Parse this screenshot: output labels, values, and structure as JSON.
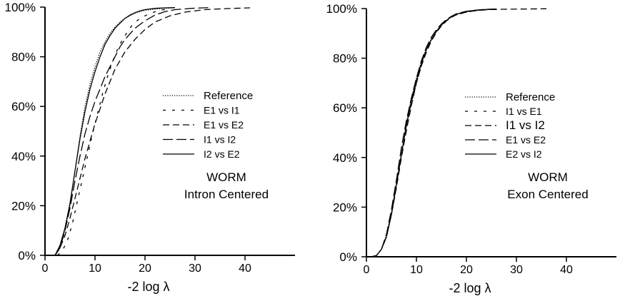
{
  "chart_data": [
    {
      "type": "line",
      "xlabel": "-2 log λ",
      "ylabel": "",
      "xlim": [
        0,
        50
      ],
      "ylim": [
        0,
        100
      ],
      "x_ticks": [
        "0",
        "10",
        "20",
        "30",
        "40"
      ],
      "y_ticks": [
        "0%",
        "20%",
        "40%",
        "60%",
        "80%",
        "100%"
      ],
      "annotation": [
        "WORM",
        "Intron Centered"
      ],
      "legend_position": "center-right",
      "series": [
        {
          "name": "Reference",
          "dash": "dotted",
          "x": [
            2,
            3,
            4,
            5,
            6,
            7,
            8,
            9,
            10,
            11,
            12,
            13,
            14,
            15,
            16,
            17,
            18,
            19,
            20,
            22,
            24,
            26
          ],
          "y": [
            0,
            3,
            10,
            20,
            34,
            48,
            60,
            69,
            76,
            82,
            86,
            89.5,
            92,
            94,
            95.5,
            96.5,
            97.5,
            98.2,
            98.7,
            99.2,
            99.5,
            99.7
          ]
        },
        {
          "name": "E1 vs I1",
          "dash": "sparse",
          "x": [
            2.5,
            3.5,
            4.5,
            5.5,
            6.5,
            7.5,
            8.5,
            9.5,
            10.5,
            11.5,
            12.5,
            13.5,
            14.5,
            15.5,
            16.5,
            17.5,
            19,
            21,
            23,
            25
          ],
          "y": [
            0,
            2,
            6,
            13,
            22,
            31,
            40,
            49,
            57,
            65,
            72,
            78,
            83,
            87,
            90,
            93,
            95.5,
            97.5,
            98.7,
            99.4
          ]
        },
        {
          "name": "E1 vs E2",
          "dash": "medium",
          "x": [
            2,
            3,
            4,
            5,
            6,
            7,
            8,
            9,
            10,
            11,
            12,
            13,
            14,
            16,
            18,
            20,
            22,
            25,
            28,
            32,
            36,
            41
          ],
          "y": [
            0,
            3,
            8,
            15,
            23,
            31,
            39,
            46,
            53,
            59,
            65,
            70,
            75,
            82,
            87,
            91,
            94,
            96.5,
            98,
            99,
            99.4,
            99.7
          ]
        },
        {
          "name": "I1 vs I2",
          "dash": "long",
          "x": [
            2,
            3,
            4,
            5,
            6,
            7,
            8,
            9,
            10,
            11,
            12,
            13,
            14,
            15,
            16,
            18,
            20,
            22,
            24,
            26,
            30,
            33
          ],
          "y": [
            0,
            3,
            10,
            19,
            30,
            40,
            49,
            56,
            62,
            67,
            72,
            76,
            80,
            84,
            87,
            91.5,
            94.5,
            96.8,
            98.2,
            99,
            99.6,
            99.8
          ]
        },
        {
          "name": "I2 vs E2",
          "dash": "solid",
          "x": [
            2,
            3,
            4,
            5,
            6,
            7,
            8,
            9,
            10,
            11,
            12,
            13,
            14,
            15,
            16,
            17,
            18,
            19,
            20,
            22,
            24,
            26
          ],
          "y": [
            0,
            4,
            11,
            21,
            34,
            47,
            58,
            67,
            74,
            80,
            85,
            88.5,
            91.5,
            93.5,
            95.5,
            96.8,
            97.8,
            98.5,
            99,
            99.5,
            99.7,
            99.8
          ]
        }
      ]
    },
    {
      "type": "line",
      "xlabel": "-2 log λ",
      "ylabel": "",
      "xlim": [
        0,
        50
      ],
      "ylim": [
        0,
        100
      ],
      "x_ticks": [
        "0",
        "10",
        "20",
        "30",
        "40"
      ],
      "y_ticks": [
        "0%",
        "20%",
        "40%",
        "60%",
        "80%",
        "100%"
      ],
      "annotation": [
        "WORM",
        "Exon Centered"
      ],
      "legend_position": "center-right",
      "series": [
        {
          "name": "Reference",
          "dash": "dotted",
          "x": [
            1,
            2,
            3,
            4,
            5,
            6,
            7,
            8,
            9,
            10,
            11,
            12,
            13,
            14,
            15,
            16,
            17,
            18,
            19,
            20,
            22,
            24,
            26
          ],
          "y": [
            0,
            0.5,
            3,
            9,
            18,
            30,
            42,
            54,
            64,
            72,
            79,
            84,
            88,
            91,
            93.5,
            95.3,
            96.7,
            97.7,
            98.4,
            98.9,
            99.4,
            99.7,
            99.8
          ]
        },
        {
          "name": "I1 vs E1",
          "dash": "sparse",
          "x": [
            1,
            2,
            3,
            4,
            5,
            6,
            7,
            8,
            9,
            10,
            11,
            12,
            13,
            14,
            15,
            16,
            17,
            18,
            20,
            22,
            24,
            26
          ],
          "y": [
            0,
            0.5,
            3,
            8,
            17,
            28,
            40,
            52,
            62,
            70,
            77,
            83,
            87,
            90.5,
            93,
            95,
            96.5,
            97.5,
            98.6,
            99.2,
            99.6,
            99.8
          ]
        },
        {
          "name": "I1 vs I2",
          "dash": "medium",
          "x": [
            1,
            2,
            3,
            4,
            5,
            6,
            7,
            8,
            9,
            10,
            11,
            12,
            13,
            14,
            15,
            16,
            17,
            18,
            20,
            22,
            24,
            27,
            31,
            36
          ],
          "y": [
            0,
            0.5,
            3,
            8,
            17,
            28,
            40,
            51,
            61,
            70,
            77,
            82.5,
            87,
            90.5,
            93,
            95,
            96.5,
            97.5,
            98.6,
            99.2,
            99.5,
            99.7,
            99.8,
            99.9
          ]
        },
        {
          "name": "E1 vs E2",
          "dash": "long",
          "x": [
            1,
            2,
            3,
            4,
            5,
            6,
            7,
            8,
            9,
            10,
            11,
            12,
            13,
            14,
            15,
            16,
            17,
            18,
            20,
            22,
            24,
            26
          ],
          "y": [
            0,
            0.5,
            3,
            9,
            19,
            31,
            44,
            55,
            64,
            72,
            79,
            84.5,
            88.5,
            91.5,
            93.8,
            95.6,
            96.9,
            97.9,
            98.9,
            99.4,
            99.7,
            99.8
          ]
        },
        {
          "name": "E2 vs I2",
          "dash": "solid",
          "x": [
            1,
            2,
            3,
            4,
            5,
            6,
            7,
            8,
            9,
            10,
            11,
            12,
            13,
            14,
            15,
            16,
            17,
            18,
            20,
            22,
            24,
            26
          ],
          "y": [
            0,
            0.5,
            3,
            8,
            17,
            29,
            41,
            53,
            63,
            71,
            78,
            83.5,
            87.5,
            90.8,
            93.3,
            95.2,
            96.7,
            97.7,
            98.8,
            99.3,
            99.6,
            99.8
          ]
        }
      ]
    }
  ]
}
